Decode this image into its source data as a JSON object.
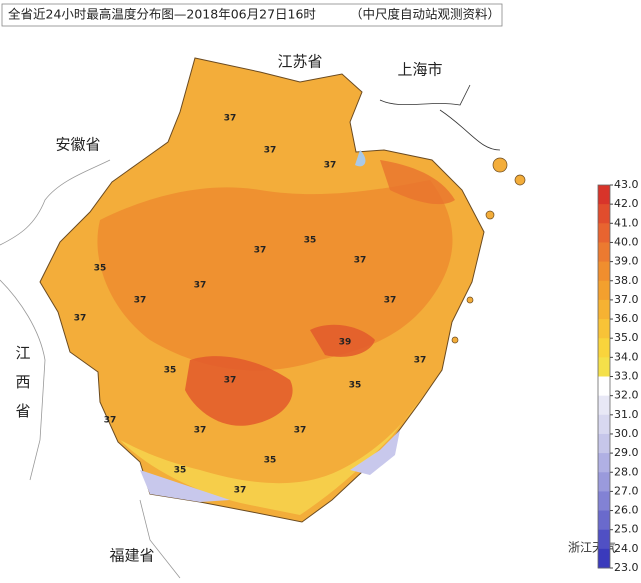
{
  "title": "全省近24小时最高温度分布图—2018年06月27日16时",
  "source": "（中尺度自动站观测资料）",
  "regions": [
    "江苏省",
    "上海市",
    "安徽省",
    "江西省",
    "福建省"
  ],
  "contour_labels": [
    37,
    37,
    37,
    35,
    37,
    37,
    37,
    37,
    35,
    37,
    39,
    37,
    35,
    37,
    37,
    35,
    37,
    37,
    37,
    35,
    37,
    35
  ],
  "colorbar": {
    "ticks": [
      {
        "value": 43,
        "label": "43.0"
      },
      {
        "value": 42,
        "label": "42.0"
      },
      {
        "value": 41,
        "label": "41.0"
      },
      {
        "value": 40,
        "label": "40.0"
      },
      {
        "value": 39,
        "label": "39.0"
      },
      {
        "value": 38,
        "label": "38.0"
      },
      {
        "value": 37,
        "label": "37.0"
      },
      {
        "value": 36,
        "label": "36.0"
      },
      {
        "value": 35,
        "label": "35.0"
      },
      {
        "value": 34,
        "label": "34.0"
      },
      {
        "value": 33,
        "label": "33.0"
      },
      {
        "value": 32,
        "label": "32.0"
      },
      {
        "value": 31,
        "label": "31.0"
      },
      {
        "value": 30,
        "label": "30.0"
      },
      {
        "value": 29,
        "label": "29.0"
      },
      {
        "value": 28,
        "label": "28.0"
      },
      {
        "value": 27,
        "label": "27.0"
      },
      {
        "value": 26,
        "label": "26.0"
      },
      {
        "value": 25,
        "label": "25.0"
      },
      {
        "value": 24,
        "label": "24.0"
      },
      {
        "value": 23,
        "label": "23.0"
      }
    ],
    "colors": [
      "#d8342a",
      "#e14d2d",
      "#e86430",
      "#ec7a30",
      "#f08e2e",
      "#f3a02e",
      "#f6b232",
      "#f8c337",
      "#f9d43c",
      "#f4e04a",
      "#ffffff",
      "#e8e8f6",
      "#d8d8f0",
      "#c6c6ea",
      "#b0b0e4",
      "#9a9adc",
      "#8282d4",
      "#6a6acc",
      "#5050c4",
      "#3a3abc"
    ]
  },
  "watermark": "浙江天气"
}
